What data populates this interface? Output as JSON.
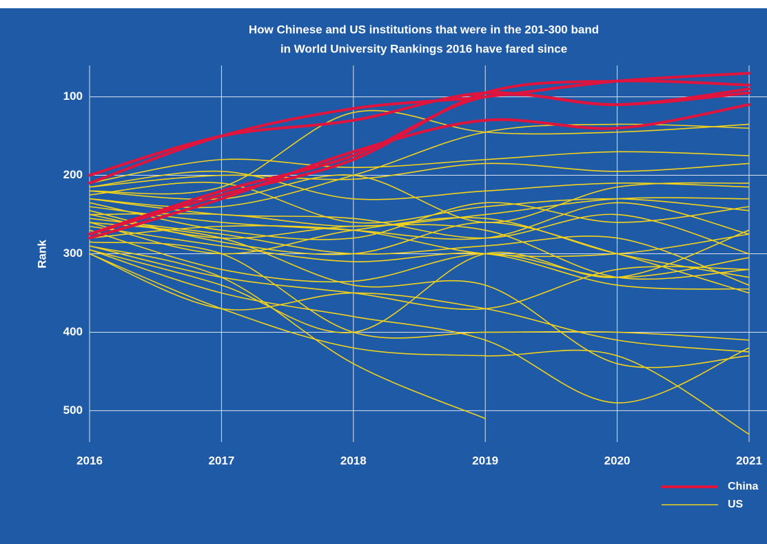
{
  "chart_data": {
    "type": "line",
    "title": [
      "How Chinese and US institutions that were in the 201-300 band",
      "in World University Rankings 2016 have fared since"
    ],
    "y_label": "Rank",
    "xlim": [
      2016,
      2021
    ],
    "xticks": [
      2016,
      2017,
      2018,
      2019,
      2020,
      2021
    ],
    "x": [
      2016,
      2017,
      2018,
      2019,
      2020,
      2021
    ],
    "ylim": [
      540,
      60
    ],
    "yticks": [
      100,
      200,
      300,
      400,
      500
    ],
    "grid": true,
    "legend": "bottom-right",
    "series": [
      {
        "name": "China",
        "color": "#e0143c",
        "width": 4,
        "lines": [
          [
            200,
            150,
            130,
            95,
            110,
            90
          ],
          [
            210,
            150,
            115,
            100,
            80,
            70
          ],
          [
            275,
            220,
            175,
            100,
            110,
            95
          ],
          [
            280,
            230,
            170,
            130,
            140,
            110
          ],
          [
            275,
            225,
            180,
            95,
            80,
            85
          ]
        ]
      },
      {
        "name": "US",
        "color": "#f2d21c",
        "width": 1.6,
        "lines": [
          [
            210,
            180,
            190,
            180,
            170,
            175
          ],
          [
            215,
            200,
            205,
            185,
            195,
            185
          ],
          [
            220,
            230,
            200,
            260,
            215,
            210
          ],
          [
            225,
            210,
            260,
            240,
            230,
            245
          ],
          [
            230,
            250,
            255,
            280,
            250,
            300
          ],
          [
            235,
            270,
            280,
            235,
            260,
            240
          ],
          [
            240,
            260,
            270,
            280,
            235,
            275
          ],
          [
            245,
            285,
            300,
            260,
            300,
            350
          ],
          [
            250,
            280,
            265,
            270,
            330,
            320
          ],
          [
            255,
            275,
            300,
            290,
            280,
            340
          ],
          [
            260,
            300,
            270,
            255,
            300,
            330
          ],
          [
            265,
            290,
            310,
            300,
            340,
            345
          ],
          [
            270,
            320,
            335,
            300,
            330,
            305
          ],
          [
            290,
            330,
            350,
            370,
            320,
            320
          ],
          [
            295,
            340,
            400,
            300,
            330,
            270
          ],
          [
            300,
            370,
            350,
            370,
            410,
            425
          ],
          [
            285,
            300,
            400,
            400,
            400,
            410
          ],
          [
            290,
            330,
            440,
            510,
            null,
            null
          ],
          [
            295,
            350,
            380,
            410,
            490,
            420
          ],
          [
            300,
            370,
            420,
            430,
            430,
            530
          ],
          [
            230,
            240,
            200,
            145,
            135,
            140
          ],
          [
            220,
            215,
            120,
            145,
            145,
            135
          ],
          [
            250,
            250,
            265,
            250,
            230,
            230
          ],
          [
            215,
            195,
            230,
            220,
            210,
            215
          ],
          [
            260,
            280,
            340,
            340,
            440,
            430
          ],
          [
            280,
            265,
            270,
            300,
            300,
            275
          ]
        ]
      }
    ]
  }
}
